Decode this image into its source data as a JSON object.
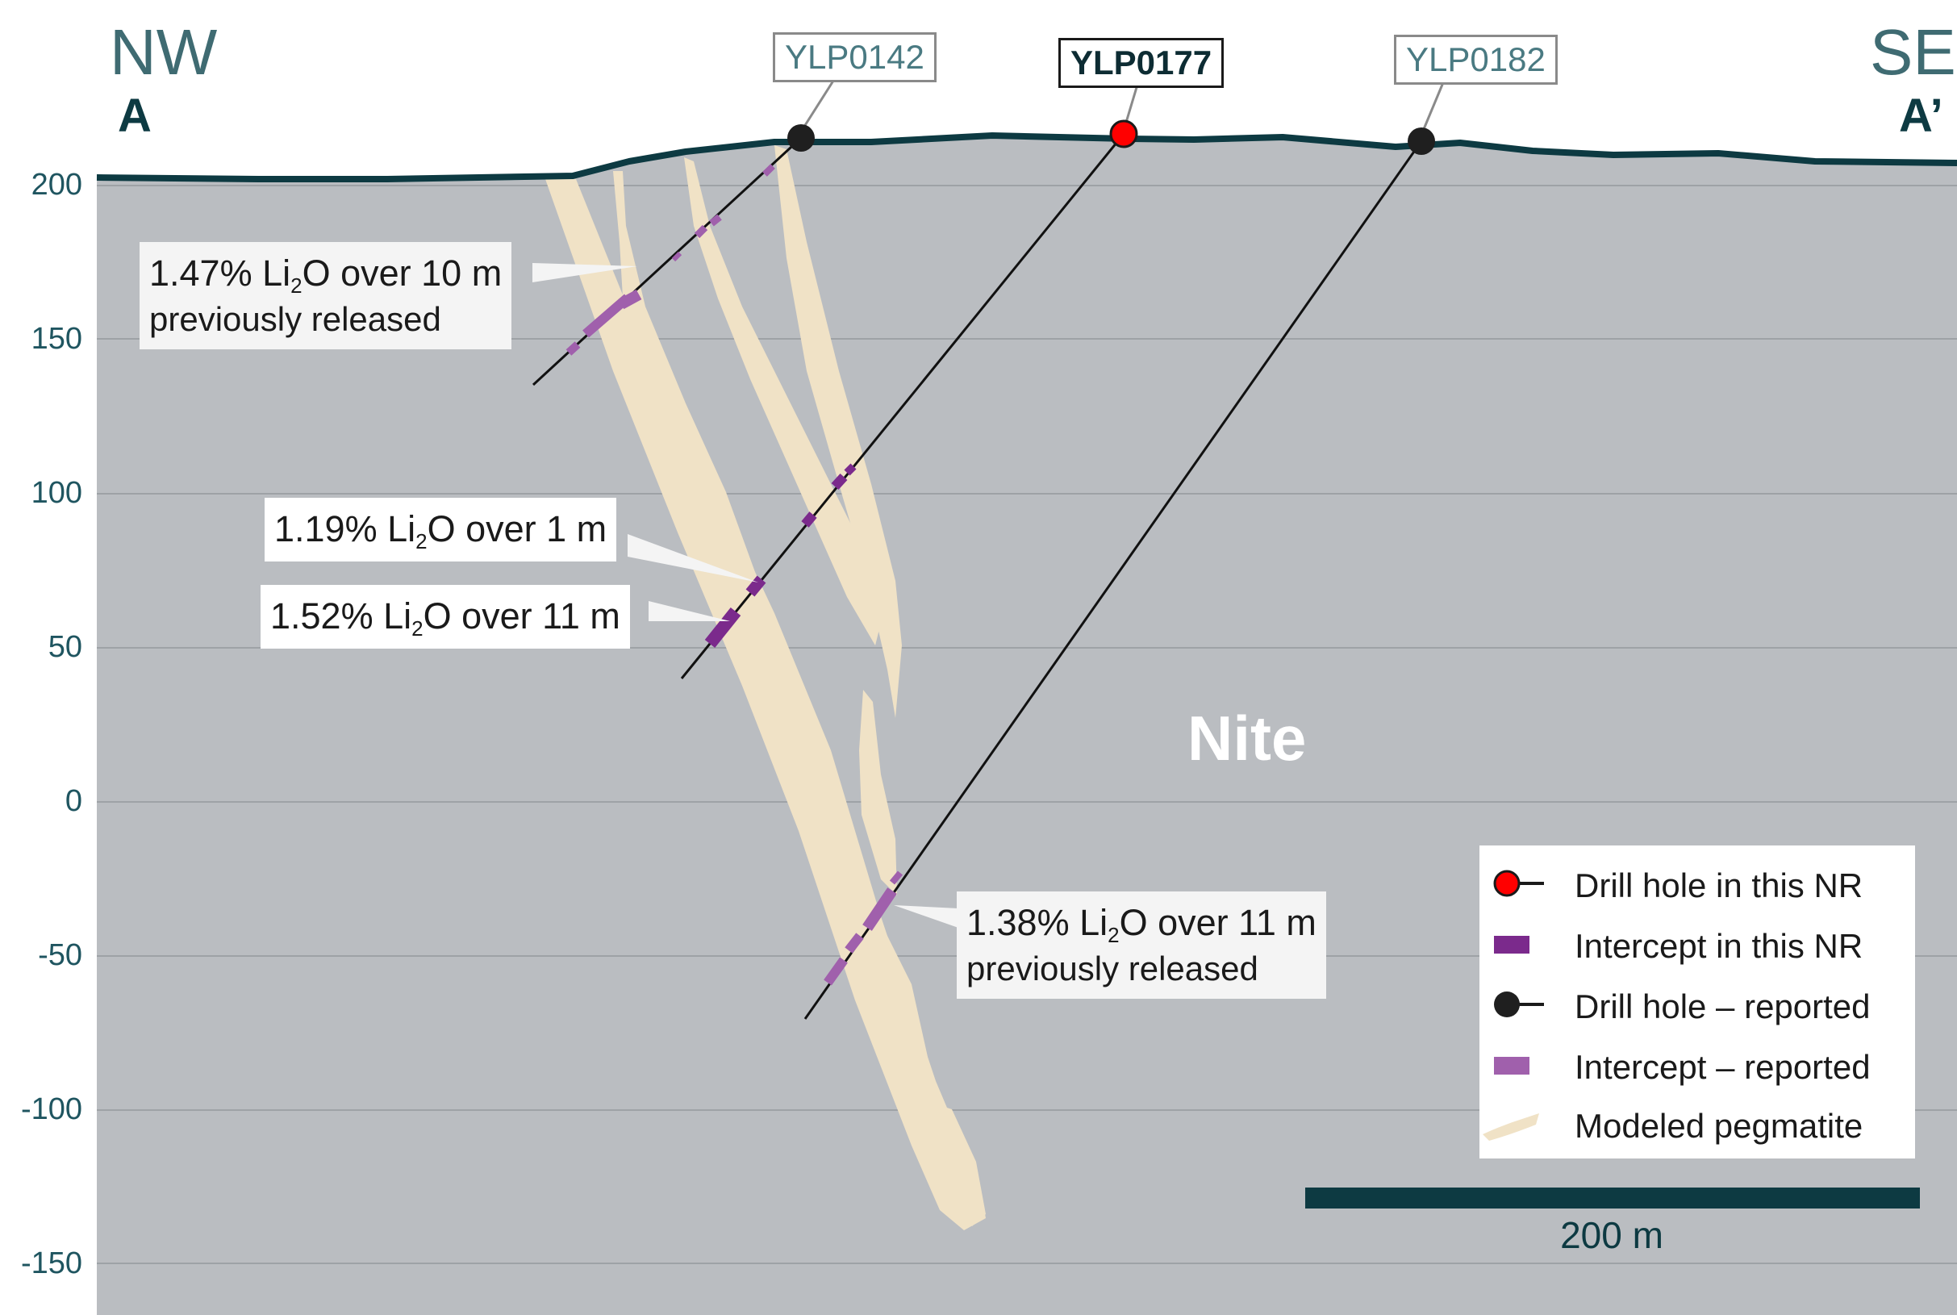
{
  "section": {
    "nw_label": "NW",
    "se_label": "SE",
    "start_label": "A",
    "end_label": "A’",
    "zone_label": "Nite"
  },
  "elevation_axis": {
    "ticks": [
      "200",
      "150",
      "100",
      "50",
      "0",
      "-50",
      "-100",
      "-150"
    ]
  },
  "drill_holes": [
    {
      "id": "YLP0142",
      "status": "reported"
    },
    {
      "id": "YLP0177",
      "status": "this NR"
    },
    {
      "id": "YLP0182",
      "status": "reported"
    }
  ],
  "intercept_callouts": [
    {
      "grade": "1.47% Li",
      "sub": "2",
      "rest": "O over 10 m",
      "note": "previously released"
    },
    {
      "grade": "1.19% Li",
      "sub": "2",
      "rest": "O over 1 m",
      "note": ""
    },
    {
      "grade": "1.52% Li",
      "sub": "2",
      "rest": "O over 11 m",
      "note": ""
    },
    {
      "grade": "1.38% Li",
      "sub": "2",
      "rest": "O over 11 m",
      "note": "previously released"
    }
  ],
  "legend": {
    "items": [
      {
        "label": "Drill hole in this NR",
        "symbol": "red-collar-icon",
        "color": "#ff0000"
      },
      {
        "label": "Intercept in this NR",
        "symbol": "dark-purple-bar-icon",
        "color": "#7b2a8c"
      },
      {
        "label": "Drill hole – reported",
        "symbol": "black-collar-icon",
        "color": "#1a1a1a"
      },
      {
        "label": "Intercept – reported",
        "symbol": "light-purple-bar-icon",
        "color": "#a060ac"
      },
      {
        "label": "Modeled pegmatite",
        "symbol": "pegmatite-swatch-icon",
        "color": "#f0e2c6"
      }
    ]
  },
  "scale_bar": {
    "label": "200 m"
  },
  "colors": {
    "rock": "#babdc1",
    "topography": "#0d3a42",
    "pegmatite": "#f0e2c6",
    "grid": "#9ea2a6"
  }
}
